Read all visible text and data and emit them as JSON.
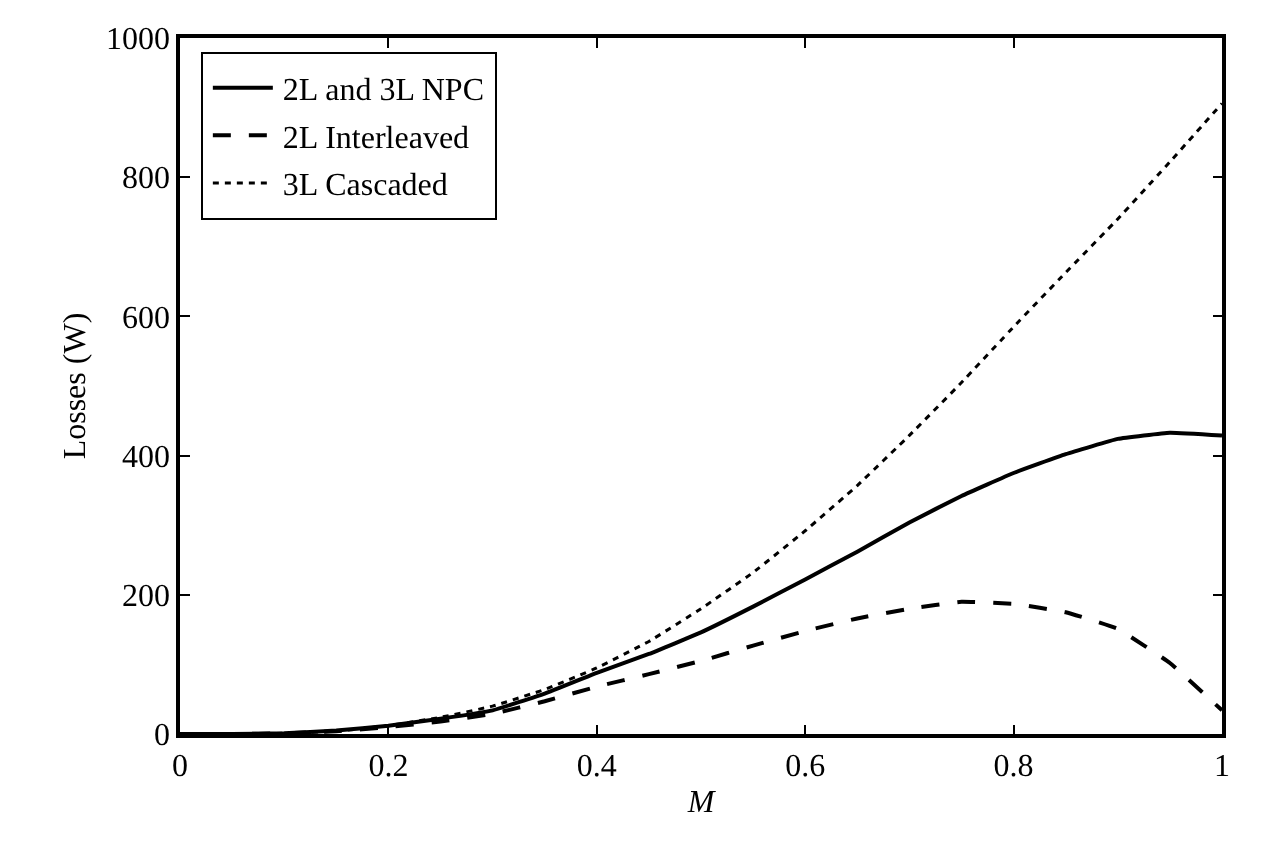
{
  "chart_data": {
    "type": "line",
    "xlabel": "M",
    "ylabel": "Losses (W)",
    "xlim": [
      0,
      1
    ],
    "xticks": [
      0,
      0.2,
      0.4,
      0.6,
      0.8,
      1
    ],
    "ylim": [
      0,
      1000
    ],
    "yticks": [
      0,
      200,
      400,
      600,
      800,
      1000
    ],
    "legend": "top left",
    "marker": "none",
    "x": [
      0,
      0.05,
      0.1,
      0.15,
      0.2,
      0.25,
      0.3,
      0.35,
      0.4,
      0.45,
      0.5,
      0.55,
      0.6,
      0.65,
      0.7,
      0.75,
      0.8,
      0.85,
      0.9,
      0.95,
      1.0
    ],
    "series": [
      {
        "name": "2L and 3L NPC",
        "color": "#000000",
        "line_style": "solid",
        "values": [
          0,
          0,
          1,
          5,
          12,
          22,
          34,
          58,
          88,
          115,
          146,
          183,
          222,
          262,
          304,
          342,
          375,
          402,
          424,
          433,
          429
        ]
      },
      {
        "name": "2L Interleaved",
        "color": "#000000",
        "line_style": "dashed",
        "values": [
          0,
          0,
          1,
          4,
          10,
          18,
          29,
          47,
          68,
          86,
          105,
          127,
          148,
          166,
          180,
          190,
          187,
          175,
          151,
          102,
          34
        ]
      },
      {
        "name": "3L Cascaded",
        "color": "#000000",
        "line_style": "dotted",
        "values": [
          0,
          0,
          1,
          4,
          12,
          24,
          40,
          64,
          95,
          133,
          180,
          232,
          292,
          357,
          429,
          505,
          585,
          663,
          740,
          822,
          906
        ]
      }
    ]
  }
}
